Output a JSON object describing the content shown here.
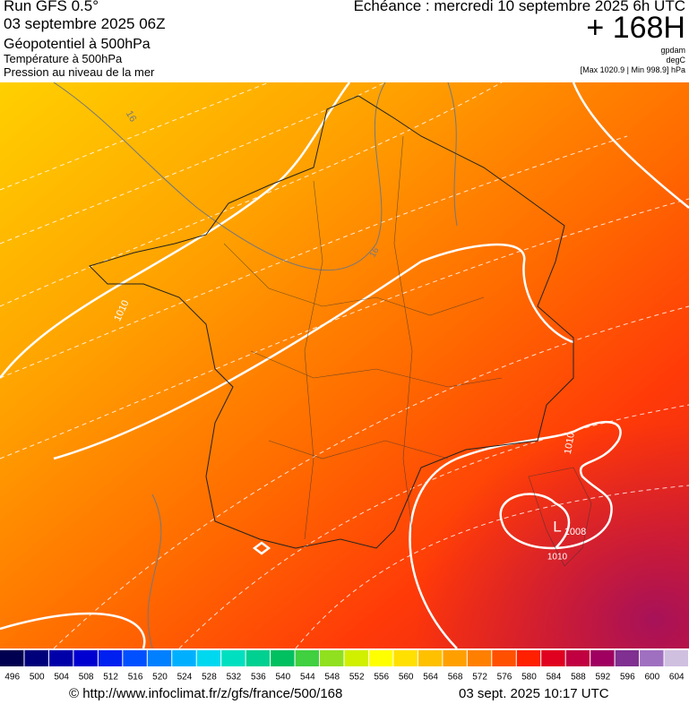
{
  "header": {
    "run": "Run GFS 0.5°",
    "run_date": "03 septembre 2025 06Z",
    "field1": "Géopotentiel à 500hPa",
    "field2": "Température à 500hPa",
    "field3": "Pression au niveau de la mer",
    "valid": "Echéance : mercredi 10 septembre 2025 6h UTC",
    "lead": "+ 168H",
    "unit1": "gpdam",
    "unit2": "degC",
    "pressure_range": "[Max 1020.9 | Min 998.9] hPa"
  },
  "map_labels": [
    "16",
    "1010",
    "1010",
    "L",
    "1008",
    "1010",
    "16"
  ],
  "colorbar": {
    "values": [
      496,
      500,
      504,
      508,
      512,
      516,
      520,
      524,
      528,
      532,
      536,
      540,
      544,
      548,
      552,
      556,
      560,
      564,
      568,
      572,
      576,
      580,
      584,
      588,
      592,
      596,
      600,
      604
    ],
    "colors": [
      "#000050",
      "#00007a",
      "#0000a8",
      "#0000d0",
      "#0020f0",
      "#0050ff",
      "#0080ff",
      "#00b0ff",
      "#00d8f0",
      "#00e0c0",
      "#00d090",
      "#00c060",
      "#40d040",
      "#90e020",
      "#d0f000",
      "#ffff00",
      "#ffe000",
      "#ffc000",
      "#ffa000",
      "#ff8000",
      "#ff5000",
      "#ff2000",
      "#e00020",
      "#c00040",
      "#a00060",
      "#803090",
      "#a070c0",
      "#d0c0e0"
    ]
  },
  "footer": {
    "source": "© http://www.infoclimat.fr/z/gfs/france/500/168",
    "date": "03 sept. 2025 10:17 UTC"
  }
}
